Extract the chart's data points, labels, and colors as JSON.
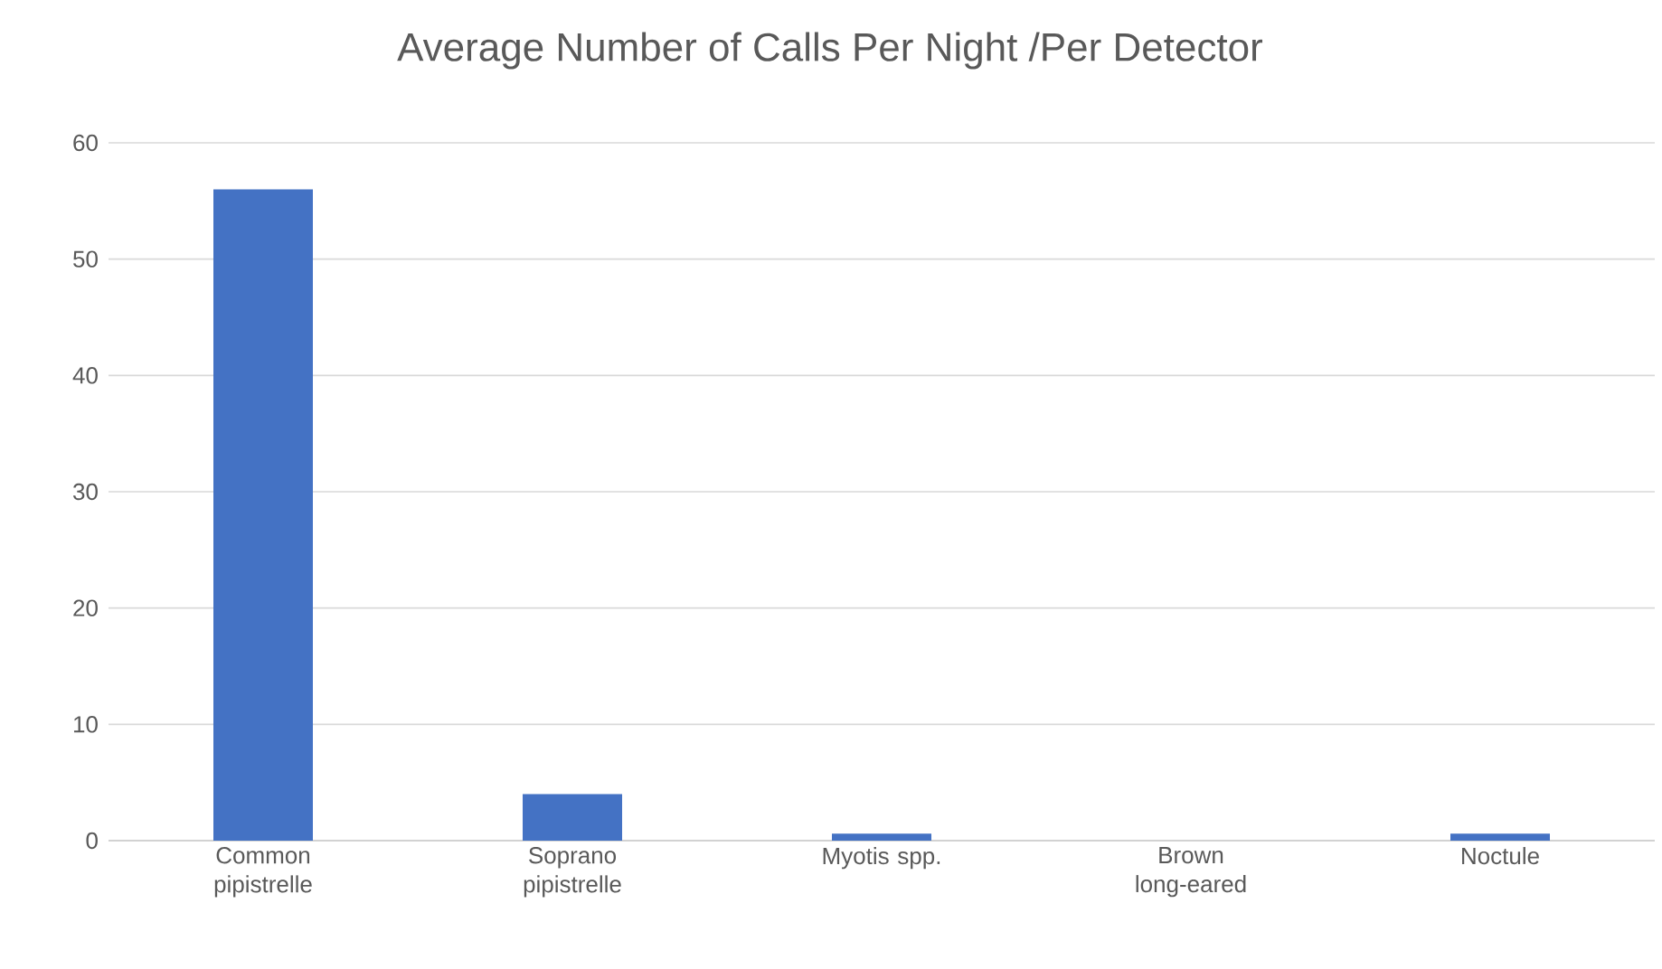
{
  "chart_data": {
    "type": "bar",
    "title": "Average Number of Calls Per Night /Per Detector",
    "categories": [
      "Common pipistrelle",
      "Soprano pipistrelle",
      "Myotis spp.",
      "Brown long-eared",
      "Noctule"
    ],
    "values": [
      56,
      4,
      0.6,
      0,
      0.6
    ],
    "color": "#4472c4",
    "ylim": [
      0,
      60
    ],
    "yticks": [
      0,
      10,
      20,
      30,
      40,
      50,
      60
    ],
    "grid": "y"
  }
}
